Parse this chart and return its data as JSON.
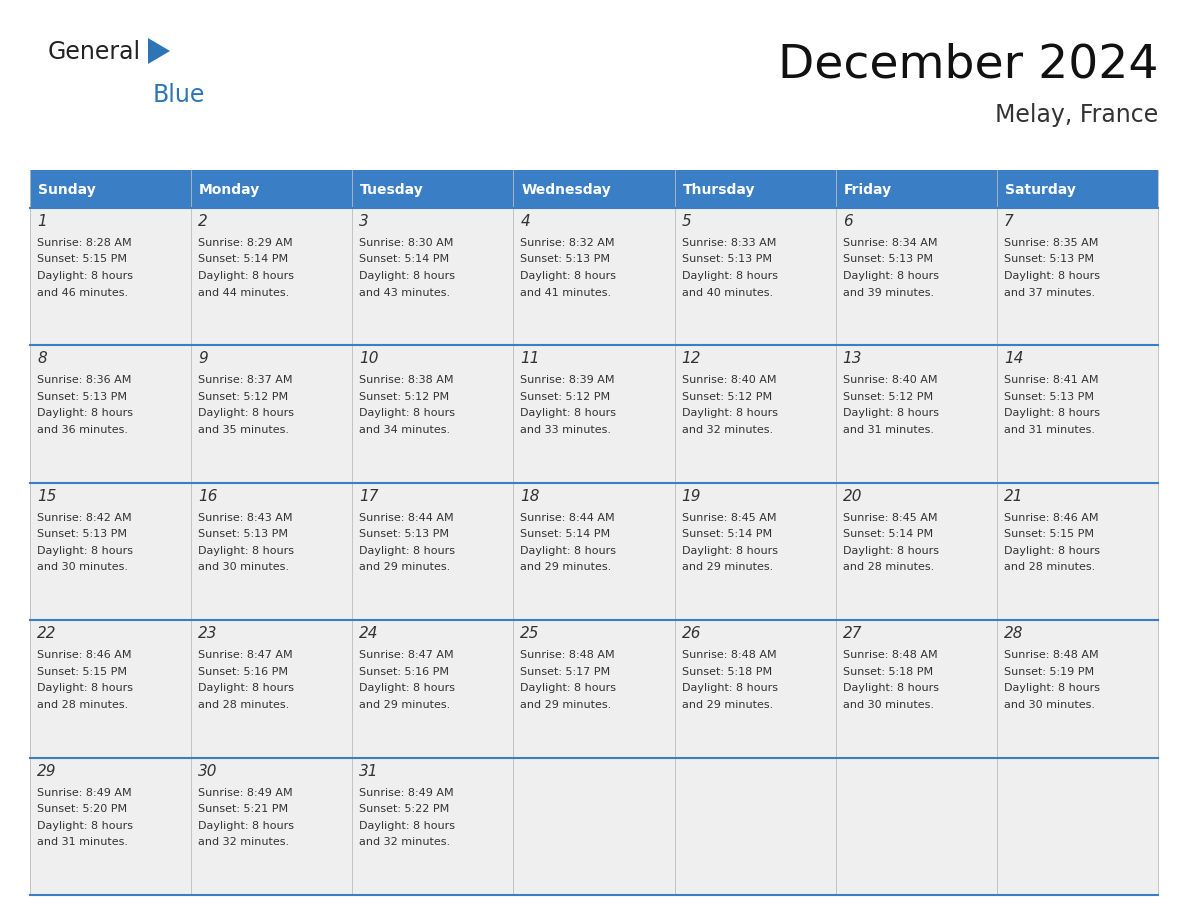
{
  "title": "December 2024",
  "subtitle": "Melay, France",
  "header_bg_color": "#3A7EC6",
  "header_text_color": "#FFFFFF",
  "cell_bg_color": "#EFEFEF",
  "text_color": "#333333",
  "border_color": "#3A7EC6",
  "days_of_week": [
    "Sunday",
    "Monday",
    "Tuesday",
    "Wednesday",
    "Thursday",
    "Friday",
    "Saturday"
  ],
  "weeks": [
    [
      {
        "day": 1,
        "sunrise": "8:28 AM",
        "sunset": "5:15 PM",
        "daylight_hours": 8,
        "daylight_minutes": 46
      },
      {
        "day": 2,
        "sunrise": "8:29 AM",
        "sunset": "5:14 PM",
        "daylight_hours": 8,
        "daylight_minutes": 44
      },
      {
        "day": 3,
        "sunrise": "8:30 AM",
        "sunset": "5:14 PM",
        "daylight_hours": 8,
        "daylight_minutes": 43
      },
      {
        "day": 4,
        "sunrise": "8:32 AM",
        "sunset": "5:13 PM",
        "daylight_hours": 8,
        "daylight_minutes": 41
      },
      {
        "day": 5,
        "sunrise": "8:33 AM",
        "sunset": "5:13 PM",
        "daylight_hours": 8,
        "daylight_minutes": 40
      },
      {
        "day": 6,
        "sunrise": "8:34 AM",
        "sunset": "5:13 PM",
        "daylight_hours": 8,
        "daylight_minutes": 39
      },
      {
        "day": 7,
        "sunrise": "8:35 AM",
        "sunset": "5:13 PM",
        "daylight_hours": 8,
        "daylight_minutes": 37
      }
    ],
    [
      {
        "day": 8,
        "sunrise": "8:36 AM",
        "sunset": "5:13 PM",
        "daylight_hours": 8,
        "daylight_minutes": 36
      },
      {
        "day": 9,
        "sunrise": "8:37 AM",
        "sunset": "5:12 PM",
        "daylight_hours": 8,
        "daylight_minutes": 35
      },
      {
        "day": 10,
        "sunrise": "8:38 AM",
        "sunset": "5:12 PM",
        "daylight_hours": 8,
        "daylight_minutes": 34
      },
      {
        "day": 11,
        "sunrise": "8:39 AM",
        "sunset": "5:12 PM",
        "daylight_hours": 8,
        "daylight_minutes": 33
      },
      {
        "day": 12,
        "sunrise": "8:40 AM",
        "sunset": "5:12 PM",
        "daylight_hours": 8,
        "daylight_minutes": 32
      },
      {
        "day": 13,
        "sunrise": "8:40 AM",
        "sunset": "5:12 PM",
        "daylight_hours": 8,
        "daylight_minutes": 31
      },
      {
        "day": 14,
        "sunrise": "8:41 AM",
        "sunset": "5:13 PM",
        "daylight_hours": 8,
        "daylight_minutes": 31
      }
    ],
    [
      {
        "day": 15,
        "sunrise": "8:42 AM",
        "sunset": "5:13 PM",
        "daylight_hours": 8,
        "daylight_minutes": 30
      },
      {
        "day": 16,
        "sunrise": "8:43 AM",
        "sunset": "5:13 PM",
        "daylight_hours": 8,
        "daylight_minutes": 30
      },
      {
        "day": 17,
        "sunrise": "8:44 AM",
        "sunset": "5:13 PM",
        "daylight_hours": 8,
        "daylight_minutes": 29
      },
      {
        "day": 18,
        "sunrise": "8:44 AM",
        "sunset": "5:14 PM",
        "daylight_hours": 8,
        "daylight_minutes": 29
      },
      {
        "day": 19,
        "sunrise": "8:45 AM",
        "sunset": "5:14 PM",
        "daylight_hours": 8,
        "daylight_minutes": 29
      },
      {
        "day": 20,
        "sunrise": "8:45 AM",
        "sunset": "5:14 PM",
        "daylight_hours": 8,
        "daylight_minutes": 28
      },
      {
        "day": 21,
        "sunrise": "8:46 AM",
        "sunset": "5:15 PM",
        "daylight_hours": 8,
        "daylight_minutes": 28
      }
    ],
    [
      {
        "day": 22,
        "sunrise": "8:46 AM",
        "sunset": "5:15 PM",
        "daylight_hours": 8,
        "daylight_minutes": 28
      },
      {
        "day": 23,
        "sunrise": "8:47 AM",
        "sunset": "5:16 PM",
        "daylight_hours": 8,
        "daylight_minutes": 28
      },
      {
        "day": 24,
        "sunrise": "8:47 AM",
        "sunset": "5:16 PM",
        "daylight_hours": 8,
        "daylight_minutes": 29
      },
      {
        "day": 25,
        "sunrise": "8:48 AM",
        "sunset": "5:17 PM",
        "daylight_hours": 8,
        "daylight_minutes": 29
      },
      {
        "day": 26,
        "sunrise": "8:48 AM",
        "sunset": "5:18 PM",
        "daylight_hours": 8,
        "daylight_minutes": 29
      },
      {
        "day": 27,
        "sunrise": "8:48 AM",
        "sunset": "5:18 PM",
        "daylight_hours": 8,
        "daylight_minutes": 30
      },
      {
        "day": 28,
        "sunrise": "8:48 AM",
        "sunset": "5:19 PM",
        "daylight_hours": 8,
        "daylight_minutes": 30
      }
    ],
    [
      {
        "day": 29,
        "sunrise": "8:49 AM",
        "sunset": "5:20 PM",
        "daylight_hours": 8,
        "daylight_minutes": 31
      },
      {
        "day": 30,
        "sunrise": "8:49 AM",
        "sunset": "5:21 PM",
        "daylight_hours": 8,
        "daylight_minutes": 32
      },
      {
        "day": 31,
        "sunrise": "8:49 AM",
        "sunset": "5:22 PM",
        "daylight_hours": 8,
        "daylight_minutes": 32
      },
      null,
      null,
      null,
      null
    ]
  ]
}
